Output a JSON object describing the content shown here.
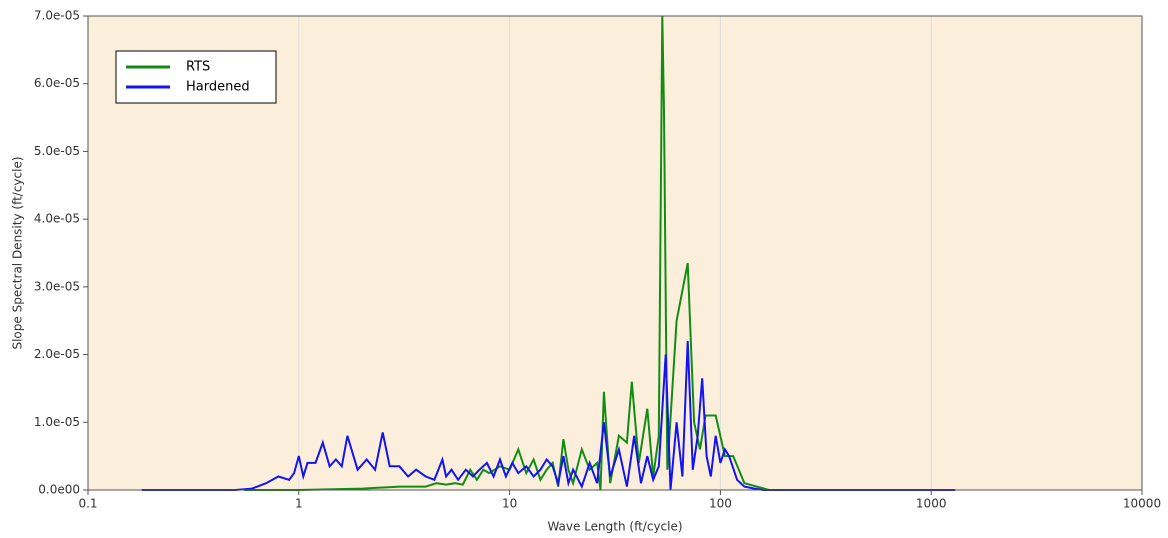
{
  "chart_data": {
    "type": "line",
    "x_label": "Wave Length (ft/cycle)",
    "y_label": "Slope Spectral Density (ft/cycle)",
    "xscale": "log",
    "grid": true,
    "legend_position": "upper left",
    "background": "#fbefdc",
    "xlim": [
      0.1,
      10000
    ],
    "xticks": [
      0.1,
      1,
      10,
      100,
      1000,
      10000
    ],
    "ylim": [
      0,
      7e-05
    ],
    "yticks": [
      {
        "value": 0,
        "label": "0.0e00"
      },
      {
        "value": 1e-05,
        "label": "1.0e-05"
      },
      {
        "value": 2e-05,
        "label": "2.0e-05"
      },
      {
        "value": 3e-05,
        "label": "3.0e-05"
      },
      {
        "value": 4e-05,
        "label": "4.0e-05"
      },
      {
        "value": 5e-05,
        "label": "5.0e-05"
      },
      {
        "value": 6e-05,
        "label": "6.0e-05"
      },
      {
        "value": 7e-05,
        "label": "7.0e-05"
      }
    ],
    "series": [
      {
        "name": "RTS",
        "color": "#138c13",
        "x": [
          0.55,
          1,
          2,
          3,
          4,
          4.5,
          5,
          5.5,
          6,
          6.5,
          7,
          7.5,
          8,
          9,
          10,
          11,
          12,
          13,
          14,
          15,
          16,
          17,
          18,
          19,
          20,
          22,
          24,
          26,
          27,
          28,
          30,
          33,
          36,
          38,
          41,
          45,
          48,
          51,
          53,
          54,
          56,
          62,
          70,
          75,
          80,
          85,
          95,
          105,
          115,
          130,
          170,
          300,
          600,
          1000
        ],
        "values": [
          0,
          0,
          2e-07,
          5e-07,
          5e-07,
          1e-06,
          8e-07,
          1e-06,
          8e-07,
          3e-06,
          1.5e-06,
          3e-06,
          2.5e-06,
          3.5e-06,
          3e-06,
          6e-06,
          2.5e-06,
          4.5e-06,
          1.5e-06,
          3e-06,
          4e-06,
          5e-07,
          7.5e-06,
          3e-06,
          1e-06,
          6e-06,
          3e-06,
          4e-06,
          0,
          1.45e-05,
          1e-06,
          8e-06,
          7e-06,
          1.6e-05,
          4e-06,
          1.2e-05,
          2e-06,
          8e-06,
          7e-05,
          5.6e-05,
          3e-06,
          2.5e-05,
          3.35e-05,
          1e-05,
          6e-06,
          1.1e-05,
          1.1e-05,
          5e-06,
          5e-06,
          1e-06,
          0,
          0,
          0,
          0
        ]
      },
      {
        "name": "Hardened",
        "color": "#1414f0",
        "x": [
          0.18,
          0.3,
          0.5,
          0.6,
          0.7,
          0.8,
          0.9,
          0.95,
          1.0,
          1.05,
          1.1,
          1.2,
          1.3,
          1.4,
          1.5,
          1.6,
          1.7,
          1.9,
          2.1,
          2.3,
          2.5,
          2.7,
          3.0,
          3.3,
          3.6,
          4.0,
          4.4,
          4.8,
          5.0,
          5.3,
          5.7,
          6.2,
          6.7,
          7.2,
          7.8,
          8.4,
          9.0,
          9.6,
          10.3,
          11,
          12,
          13,
          14,
          15,
          16,
          17,
          18,
          19,
          20,
          22,
          24,
          26,
          28,
          30,
          33,
          36,
          39,
          42,
          45,
          48,
          51,
          55,
          58,
          62,
          66,
          70,
          74,
          78,
          82,
          86,
          90,
          95,
          100,
          105,
          110,
          120,
          130,
          145,
          160,
          200,
          400,
          800,
          1300
        ],
        "values": [
          0,
          0,
          0,
          2e-07,
          1e-06,
          2e-06,
          1.5e-06,
          2.5e-06,
          5e-06,
          2e-06,
          4e-06,
          4e-06,
          7e-06,
          3.5e-06,
          4.5e-06,
          3.5e-06,
          8e-06,
          3e-06,
          4.5e-06,
          3e-06,
          8.5e-06,
          3.5e-06,
          3.5e-06,
          2e-06,
          3e-06,
          2e-06,
          1.5e-06,
          4.5e-06,
          2e-06,
          3e-06,
          1.5e-06,
          3e-06,
          2e-06,
          3e-06,
          4e-06,
          2e-06,
          4.5e-06,
          2e-06,
          4e-06,
          2.5e-06,
          3.5e-06,
          2e-06,
          3e-06,
          4.5e-06,
          3.5e-06,
          1e-06,
          5e-06,
          1e-06,
          3e-06,
          5e-07,
          4e-06,
          1e-06,
          1e-05,
          2e-06,
          6e-06,
          5e-07,
          8e-06,
          1e-06,
          5e-06,
          1.5e-06,
          3.5e-06,
          2e-05,
          0,
          1e-05,
          2e-06,
          2.2e-05,
          3e-06,
          8e-06,
          1.65e-05,
          5e-06,
          2e-06,
          8e-06,
          4e-06,
          6e-06,
          5e-06,
          1.5e-06,
          5e-07,
          2e-07,
          0,
          0,
          0,
          0,
          0
        ]
      }
    ]
  }
}
